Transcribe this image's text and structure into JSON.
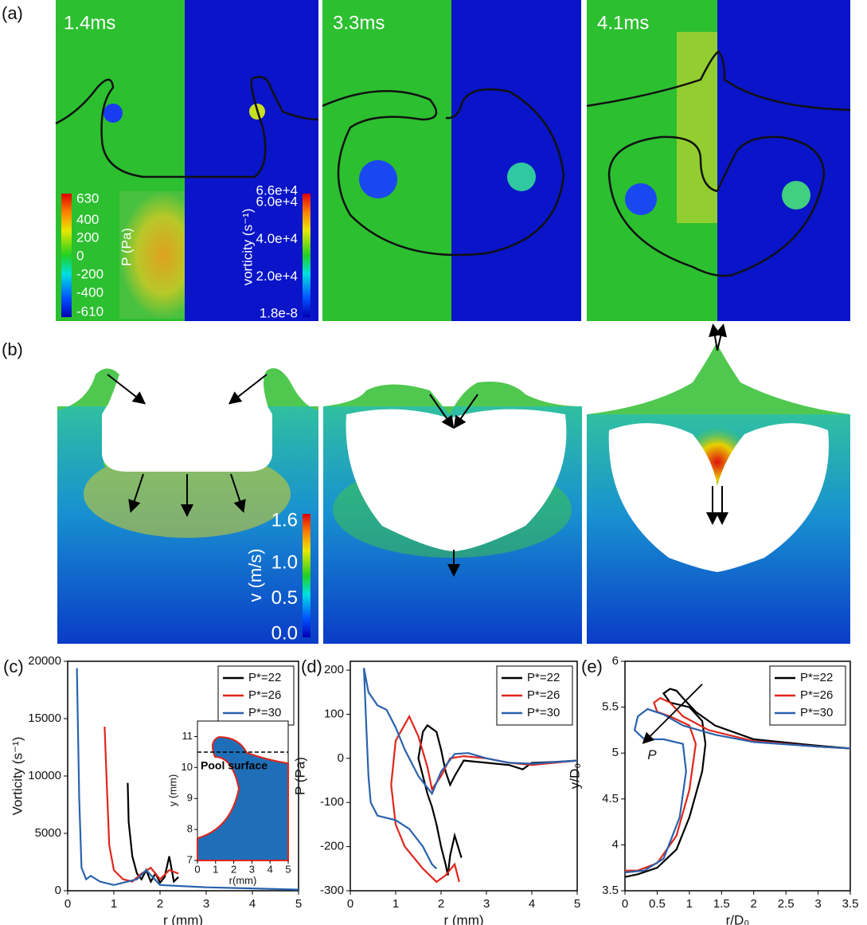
{
  "panel_labels": [
    "(a)",
    "(b)",
    "(c)",
    "(d)",
    "(e)"
  ],
  "pressure_field": {
    "times": [
      "1.4ms",
      "3.3ms",
      "4.1ms"
    ],
    "pressure_bar": {
      "label": "P (Pa)",
      "ticks": [
        630,
        400,
        200,
        0,
        -200,
        -400,
        -610
      ]
    },
    "vorticity_bar": {
      "label": "vorticity (s⁻¹)",
      "ticks": [
        {
          "value": 66000,
          "label": "6.6e+4"
        },
        {
          "value": 60000,
          "label": "6.0e+4"
        },
        {
          "value": 40000,
          "label": "4.0e+4"
        },
        {
          "value": 20000,
          "label": "2.0e+4"
        },
        {
          "value": 1.8e-08,
          "label": "1.8e-8"
        }
      ]
    }
  },
  "velocity_field": {
    "bar": {
      "label": "v (m/s)",
      "ticks": [
        1.6,
        {
          "value": 1.0,
          "label": "1.0"
        },
        0.5,
        {
          "value": 0.0,
          "label": "0.0"
        }
      ]
    }
  },
  "chart_data": [
    {
      "type": "line",
      "x_label": "r (mm)",
      "y_label": "Vorticity (s⁻¹)",
      "xlim": [
        0,
        5
      ],
      "xticks": [
        0,
        1,
        2,
        3,
        4,
        5
      ],
      "ylim": [
        0,
        20000
      ],
      "yticks": [
        0,
        5000,
        10000,
        15000,
        20000
      ],
      "legend": "upper right",
      "series": [
        {
          "name": "P*=22",
          "color": "#000000",
          "x": [
            1.3,
            1.32,
            1.4,
            1.5,
            1.6,
            1.7,
            1.8,
            1.9,
            2.0,
            2.1,
            2.2,
            2.3,
            2.4
          ],
          "values": [
            9400,
            6000,
            3000,
            1500,
            1000,
            1800,
            800,
            1500,
            700,
            1200,
            3000,
            800,
            1200
          ]
        },
        {
          "name": "P*=26",
          "color": "#e0261c",
          "x": [
            0.8,
            0.85,
            0.9,
            1.0,
            1.2,
            1.4,
            1.6,
            1.8,
            2.0,
            2.2,
            2.4
          ],
          "values": [
            14300,
            9000,
            4000,
            1800,
            1000,
            800,
            1500,
            2000,
            1000,
            1800,
            1500
          ]
        },
        {
          "name": "P*=30",
          "color": "#2a62ad",
          "x": [
            0.2,
            0.25,
            0.3,
            0.4,
            0.5,
            0.7,
            1.0,
            1.5,
            1.7,
            2.0,
            3,
            4,
            5
          ],
          "values": [
            19400,
            8000,
            2000,
            1000,
            1300,
            800,
            500,
            1000,
            1800,
            500,
            300,
            200,
            100
          ]
        }
      ],
      "inset": {
        "x_label": "r(mm)",
        "y_label": "y (mm)",
        "annotation": "Pool surface",
        "xlim": [
          0,
          5
        ],
        "xticks": [
          0,
          1,
          2,
          3,
          4,
          5
        ],
        "ylim": [
          7,
          11.5
        ],
        "yticks": [
          7,
          8,
          9,
          10,
          11
        ]
      }
    },
    {
      "type": "line",
      "x_label": "r (mm)",
      "y_label": "P (Pa)",
      "xlim": [
        0,
        5
      ],
      "xticks": [
        0,
        1,
        2,
        3,
        4,
        5
      ],
      "ylim": [
        -300,
        220
      ],
      "yticks": [
        -300,
        -200,
        -100,
        0,
        100,
        200
      ],
      "legend": "upper right",
      "series": [
        {
          "name": "P*=22",
          "color": "#000000",
          "x": [
            2.45,
            2.3,
            2.2,
            2.15,
            2.1,
            2.0,
            1.9,
            1.8,
            1.7,
            1.6,
            1.5,
            1.6,
            1.7,
            1.9,
            2.0,
            2.1,
            2.2,
            2.3,
            2.5,
            3,
            3.5,
            3.8,
            4,
            4.5,
            5
          ],
          "values": [
            -225,
            -175,
            -220,
            -265,
            -240,
            -200,
            -150,
            -110,
            -80,
            -40,
            0,
            60,
            75,
            60,
            20,
            -30,
            -60,
            -40,
            -5,
            -10,
            -15,
            -25,
            -10,
            -8,
            -5
          ]
        },
        {
          "name": "P*=26",
          "color": "#e0261c",
          "x": [
            2.4,
            2.3,
            2.1,
            1.9,
            1.6,
            1.2,
            1.0,
            0.9,
            1.0,
            1.3,
            1.5,
            1.7,
            1.8,
            2.0,
            2.2,
            2.5,
            3,
            3.5,
            4,
            5
          ],
          "values": [
            -280,
            -240,
            -265,
            -280,
            -250,
            -200,
            -150,
            -60,
            40,
            95,
            50,
            -20,
            -70,
            -40,
            0,
            5,
            0,
            -10,
            -15,
            -5
          ]
        },
        {
          "name": "P*=30",
          "color": "#2a62ad",
          "x": [
            1.9,
            1.8,
            1.6,
            1.3,
            1.0,
            0.6,
            0.45,
            0.4,
            0.35,
            0.3,
            0.4,
            0.6,
            0.8,
            1.0,
            1.2,
            1.5,
            1.8,
            2.0,
            2.3,
            2.6,
            3,
            3.5,
            4,
            5
          ],
          "values": [
            -250,
            -240,
            -200,
            -160,
            -140,
            -130,
            -100,
            -40,
            80,
            205,
            150,
            120,
            110,
            70,
            20,
            -40,
            -80,
            -30,
            10,
            12,
            0,
            -10,
            -12,
            -5
          ]
        }
      ]
    },
    {
      "type": "line",
      "x_label": "r/D₀",
      "y_label": "y/D₀",
      "annotation": "P",
      "xlim": [
        0,
        3.5
      ],
      "xticks": [
        0,
        0.5,
        1,
        1.5,
        2,
        2.5,
        3,
        3.5
      ],
      "ylim": [
        3.5,
        6
      ],
      "yticks": [
        3.5,
        4,
        4.5,
        5,
        5.5,
        6
      ],
      "legend": "upper right",
      "series": [
        {
          "name": "P*=22",
          "color": "#000000",
          "x": [
            0,
            0.2,
            0.5,
            0.8,
            1.0,
            1.2,
            1.25,
            1.2,
            1.0,
            0.7,
            0.6,
            0.7,
            0.8,
            0.9,
            1.1,
            1.4,
            2,
            3,
            3.5
          ],
          "values": [
            3.65,
            3.68,
            3.75,
            3.95,
            4.3,
            4.8,
            5.1,
            5.35,
            5.5,
            5.55,
            5.65,
            5.7,
            5.68,
            5.6,
            5.45,
            5.3,
            5.15,
            5.08,
            5.05
          ]
        },
        {
          "name": "P*=26",
          "color": "#e0261c",
          "x": [
            0,
            0.2,
            0.5,
            0.8,
            1.0,
            1.1,
            1.0,
            0.7,
            0.5,
            0.45,
            0.55,
            0.7,
            0.9,
            1.3,
            2,
            3,
            3.5
          ],
          "values": [
            3.72,
            3.72,
            3.8,
            4.1,
            4.6,
            5.1,
            5.3,
            5.4,
            5.45,
            5.55,
            5.6,
            5.55,
            5.4,
            5.25,
            5.13,
            5.07,
            5.05
          ]
        },
        {
          "name": "P*=30",
          "color": "#2a62ad",
          "x": [
            0,
            0.3,
            0.6,
            0.85,
            0.95,
            0.9,
            0.6,
            0.3,
            0.15,
            0.2,
            0.35,
            0.6,
            0.9,
            1.4,
            2,
            3,
            3.5
          ],
          "values": [
            3.7,
            3.72,
            3.85,
            4.3,
            4.8,
            5.1,
            5.15,
            5.15,
            5.25,
            5.4,
            5.48,
            5.42,
            5.3,
            5.2,
            5.12,
            5.07,
            5.05
          ]
        }
      ]
    }
  ]
}
